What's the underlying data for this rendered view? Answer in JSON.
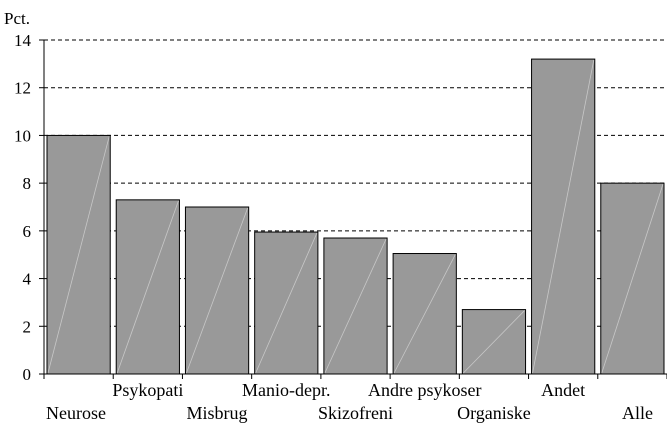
{
  "chart_data": {
    "type": "bar",
    "ylabel": "Pct.",
    "ylim": [
      0,
      14
    ],
    "yticks": [
      0,
      2,
      4,
      6,
      8,
      10,
      12,
      14
    ],
    "grid": "horizontal-dashed",
    "bar_color": "#999999",
    "categories": [
      "Neurose",
      "Psykopati",
      "Misbrug",
      "Manio-depr.",
      "Skizofreni",
      "Andre psykoser",
      "Organiske",
      "Andet",
      "Alle"
    ],
    "values": [
      10.0,
      7.3,
      7.0,
      5.95,
      5.7,
      5.05,
      2.7,
      13.2,
      8.0
    ]
  }
}
